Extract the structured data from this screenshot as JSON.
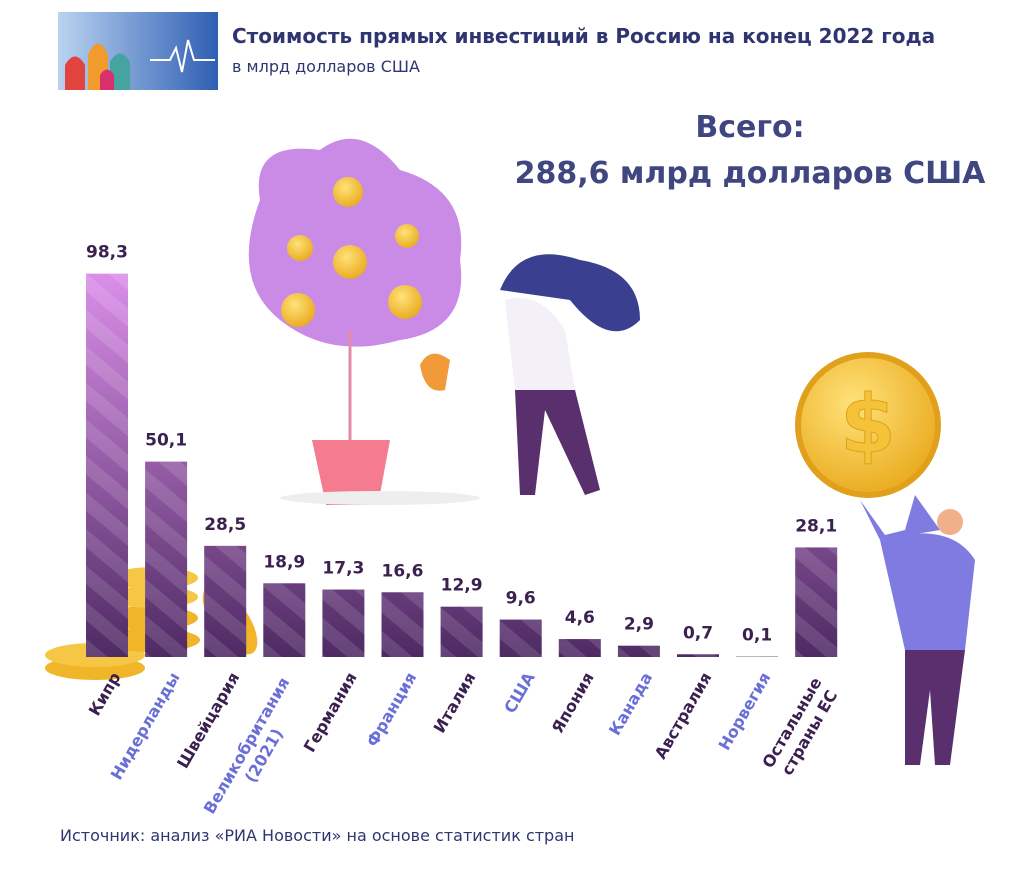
{
  "header": {
    "title": "Стоимость прямых инвестиций в Россию на конец 2022 года",
    "subtitle": "в млрд долларов США"
  },
  "total": {
    "label": "Всего:",
    "value_text": "288,6 млрд долларов США"
  },
  "chart_data": {
    "type": "bar",
    "categories": [
      "Кипр",
      "Нидерланды",
      "Швейцария",
      "Великобритания\n(2021)",
      "Германия",
      "Франция",
      "Италия",
      "США",
      "Япония",
      "Канада",
      "Австралия",
      "Норвегия",
      "Остальные\nстраны ЕС"
    ],
    "values": [
      98.3,
      50.1,
      28.5,
      18.9,
      17.3,
      16.6,
      12.9,
      9.6,
      4.6,
      2.9,
      0.7,
      0.1,
      28.1
    ],
    "value_labels": [
      "98,3",
      "50,1",
      "28,5",
      "18,9",
      "17,3",
      "16,6",
      "12,9",
      "9,6",
      "4,6",
      "2,9",
      "0,7",
      "0,1",
      "28,1"
    ],
    "bar_colors": [
      "#dc8fea",
      "#4e2a63"
    ],
    "label_colors": [
      "#3b1f4f",
      "#6a6fd8"
    ]
  },
  "source": "Источник: анализ «РИА Новости» на основе статистик стран"
}
